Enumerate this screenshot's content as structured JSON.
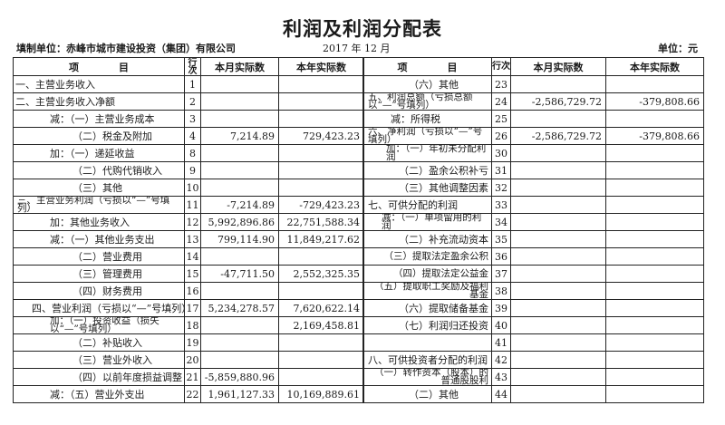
{
  "title": "利润及利润分配表",
  "org": "填制单位：赤峰市城市建设投资（集团）有限公司",
  "period": "2017 年    12 月",
  "unit": "单位：元",
  "headers": {
    "item": "项　　　　目",
    "line": "行次",
    "month": "本月实际数",
    "year": "本年实际数"
  },
  "left_rows": [
    {
      "item": "一、主营业务收入",
      "line": "1",
      "month": "",
      "year": ""
    },
    {
      "item": "二、主营业务收入净额",
      "line": "2",
      "month": "",
      "year": ""
    },
    {
      "item": "减：（一）主营业务成本",
      "line": "3",
      "month": "",
      "year": ""
    },
    {
      "item": "（二）税金及附加",
      "line": "4",
      "month": "7,214.89",
      "year": "729,423.23"
    },
    {
      "item": "加：（一）递延收益",
      "line": "8",
      "month": "",
      "year": ""
    },
    {
      "item": "（二）代购代销收入",
      "line": "9",
      "month": "",
      "year": ""
    },
    {
      "item": "（三）其他",
      "line": "10",
      "month": "",
      "year": ""
    },
    {
      "item": "三、主营业务利润（亏损以“—”号填列）",
      "line": "11",
      "month": "-7,214.89",
      "year": "-729,423.23"
    },
    {
      "item": "加：其他业务收入",
      "line": "12",
      "month": "5,992,896.86",
      "year": "22,751,588.34"
    },
    {
      "item": "减：（一）其他业务支出",
      "line": "13",
      "month": "799,114.90",
      "year": "11,849,217.62"
    },
    {
      "item": "（二）营业费用",
      "line": "14",
      "month": "",
      "year": ""
    },
    {
      "item": "（三）管理费用",
      "line": "15",
      "month": "-47,711.50",
      "year": "2,552,325.35"
    },
    {
      "item": "（四）财务费用",
      "line": "16",
      "month": "",
      "year": ""
    },
    {
      "item": "四、营业利润（亏损以“—”号填列）",
      "line": "17",
      "month": "5,234,278.57",
      "year": "7,620,622.14"
    },
    {
      "item": "加：（一）投资收益（损失以“—”号填列）",
      "line": "18",
      "month": "",
      "year": "2,169,458.81"
    },
    {
      "item": "（二）补贴收入",
      "line": "19",
      "month": "",
      "year": ""
    },
    {
      "item": "（三）营业外收入",
      "line": "20",
      "month": "",
      "year": ""
    },
    {
      "item": "（四）以前年度损益调整",
      "line": "21",
      "month": "-5,859,880.96",
      "year": ""
    },
    {
      "item": "减：（五）营业外支出",
      "line": "22",
      "month": "1,961,127.33",
      "year": "10,169,889.61"
    }
  ],
  "right_rows": [
    {
      "item": "（六）其他",
      "line": "23",
      "month": "",
      "year": ""
    },
    {
      "item": "五、利润总额（亏损总额以“—”号填列）",
      "line": "24",
      "month": "-2,586,729.72",
      "year": "-379,808.66"
    },
    {
      "item": "减：所得税",
      "line": "25",
      "month": "",
      "year": ""
    },
    {
      "item": "六、净利润（亏损以“—”号填列）",
      "line": "26",
      "month": "-2,586,729.72",
      "year": "-379,808.66"
    },
    {
      "item": "加：（一）年初未分配利润",
      "line": "30",
      "month": "",
      "year": ""
    },
    {
      "item": "（二）盈余公积补亏",
      "line": "31",
      "month": "",
      "year": ""
    },
    {
      "item": "（三）其他调整因素",
      "line": "32",
      "month": "",
      "year": ""
    },
    {
      "item": "七、可供分配的利润",
      "line": "33",
      "month": "",
      "year": ""
    },
    {
      "item": "减：（一）单项留用的利润",
      "line": "34",
      "month": "",
      "year": ""
    },
    {
      "item": "（二）补充流动资本",
      "line": "35",
      "month": "",
      "year": ""
    },
    {
      "item": "（三）提取法定盈余公积",
      "line": "36",
      "month": "",
      "year": ""
    },
    {
      "item": "（四）提取法定公益金",
      "line": "37",
      "month": "",
      "year": ""
    },
    {
      "item": "（五）提取职工奖励及福利基金",
      "line": "38",
      "month": "",
      "year": ""
    },
    {
      "item": "（六）提取储备基金",
      "line": "39",
      "month": "",
      "year": ""
    },
    {
      "item": "（七）利润归还投资",
      "line": "40",
      "month": "",
      "year": ""
    },
    {
      "item": "",
      "line": "41",
      "month": "",
      "year": ""
    },
    {
      "item": "八、可供投资者分配的利润",
      "line": "42",
      "month": "",
      "year": ""
    },
    {
      "item": "（一）转作资本（股本）的普通股股利",
      "line": "43",
      "month": "",
      "year": ""
    },
    {
      "item": "（二）其他",
      "line": "44",
      "month": "",
      "year": ""
    }
  ]
}
